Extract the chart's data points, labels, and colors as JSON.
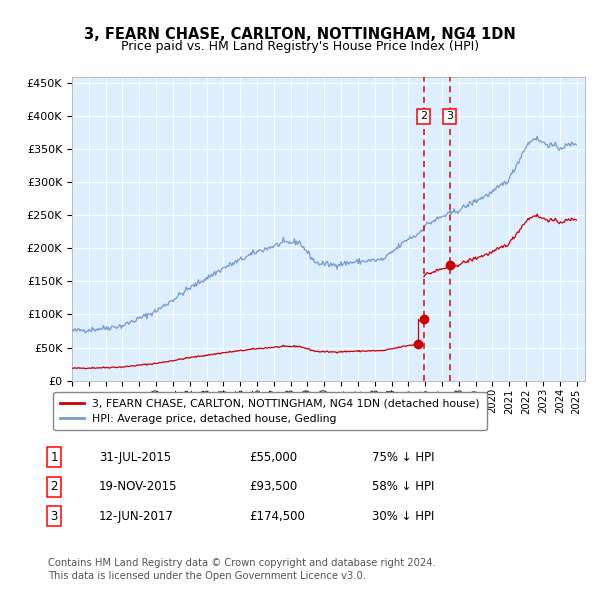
{
  "title": "3, FEARN CHASE, CARLTON, NOTTINGHAM, NG4 1DN",
  "subtitle": "Price paid vs. HM Land Registry's House Price Index (HPI)",
  "background_color": "#ffffff",
  "plot_bg_color": "#ddeeff",
  "hpi_color": "#7799cc",
  "price_color": "#cc0000",
  "ylim": [
    0,
    460000
  ],
  "yticks": [
    0,
    50000,
    100000,
    150000,
    200000,
    250000,
    300000,
    350000,
    400000,
    450000
  ],
  "legend_label_price": "3, FEARN CHASE, CARLTON, NOTTINGHAM, NG4 1DN (detached house)",
  "legend_label_hpi": "HPI: Average price, detached house, Gedling",
  "t1_year": 2015.583,
  "t2_year": 2015.917,
  "t3_year": 2017.458,
  "price1": 55000,
  "price2": 93500,
  "price3": 174500,
  "transaction1_date": "31-JUL-2015",
  "transaction1_price": "£55,000",
  "transaction1_pct": "75% ↓ HPI",
  "transaction2_date": "19-NOV-2015",
  "transaction2_price": "£93,500",
  "transaction2_pct": "58% ↓ HPI",
  "transaction3_date": "12-JUN-2017",
  "transaction3_price": "£174,500",
  "transaction3_pct": "30% ↓ HPI",
  "footer": "Contains HM Land Registry data © Crown copyright and database right 2024.\nThis data is licensed under the Open Government Licence v3.0.",
  "xlim_left": 1995,
  "xlim_right": 2025.5
}
